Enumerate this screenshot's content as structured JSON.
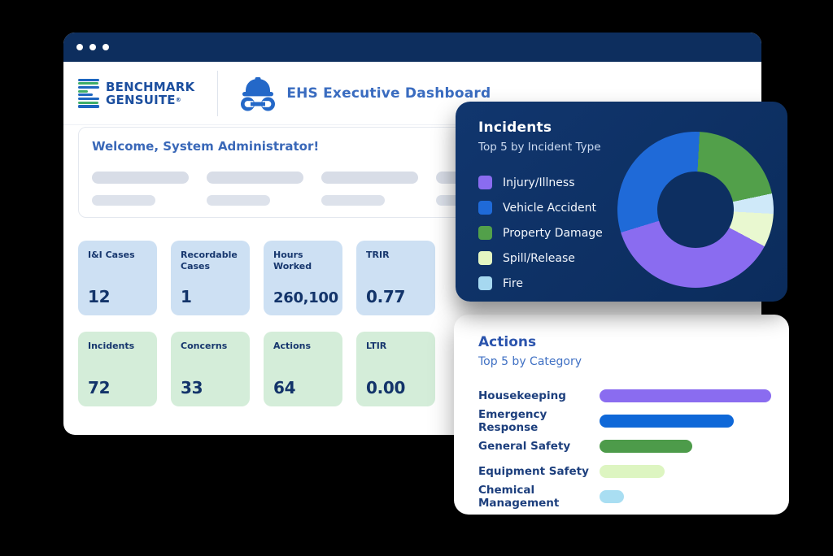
{
  "colors": {
    "titlebar": "#0d2e5e",
    "incidents_card_bg": "#0d2f61",
    "kpi_blue": "#cde0f3",
    "kpi_green": "#d4edd9",
    "brand_navy": "#1c4f9f",
    "accent_blue": "#3a6cc0",
    "logo_stripe_blue": "#1d66c0",
    "logo_stripe_green": "#3fae6a"
  },
  "window": {
    "brand": {
      "line1": "BENCHMARK",
      "line2": "GENSUITE",
      "registered": "®"
    },
    "app_title": "EHS Executive Dashboard"
  },
  "welcome": {
    "greeting": "Welcome, System Administrator!"
  },
  "kpi_rows": [
    {
      "style": "blue",
      "cards": [
        {
          "label": "I&I Cases",
          "value": "12"
        },
        {
          "label": "Recordable Cases",
          "value": "1"
        },
        {
          "label": "Hours Worked",
          "value": "260,100"
        },
        {
          "label": "TRIR",
          "value": "0.77"
        }
      ]
    },
    {
      "style": "green",
      "cards": [
        {
          "label": "Incidents",
          "value": "72"
        },
        {
          "label": "Concerns",
          "value": "33"
        },
        {
          "label": "Actions",
          "value": "64"
        },
        {
          "label": "LTIR",
          "value": "0.00"
        }
      ]
    }
  ],
  "chart_data": [
    {
      "type": "pie",
      "donut": true,
      "title": "Incidents",
      "subtitle": "Top 5 by Incident Type",
      "legend_position": "left",
      "total": 72,
      "series": [
        {
          "label": "Injury/Illness",
          "value": 27,
          "color": "#8a6cf0"
        },
        {
          "label": "Vehicle Accident",
          "value": 22,
          "color": "#1f6ad8"
        },
        {
          "label": "Property Damage",
          "value": 15,
          "color": "#52a04a"
        },
        {
          "label": "Spill/Release",
          "value": 5,
          "color": "#e4f6c2",
          "slice_color": "#e9f8d0"
        },
        {
          "label": "Fire",
          "value": 3,
          "color": "#a6d8f0",
          "slice_color": "#cfe9f9"
        }
      ],
      "slice_order": [
        2,
        4,
        3,
        0,
        1
      ],
      "start_angle_deg": 3
    },
    {
      "type": "bar",
      "orientation": "horizontal",
      "title": "Actions",
      "subtitle": "Top 5 by Category",
      "categories": [
        "Housekeeping",
        "Emergency Response",
        "General Safety",
        "Equipment Safety",
        "Chemical Management"
      ],
      "values_pct_of_max": [
        100,
        78,
        54,
        38,
        14
      ],
      "colors": [
        "#8a6cf0",
        "#0f68d8",
        "#4d9b4a",
        "#ddf5c1",
        "#a9def2"
      ],
      "grid": false
    }
  ]
}
